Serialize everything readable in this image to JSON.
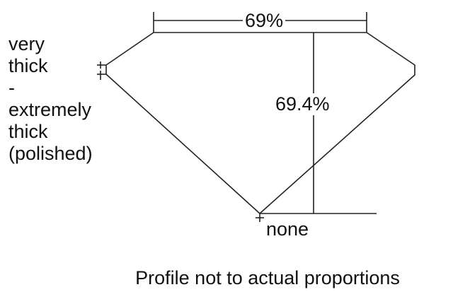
{
  "girdle_label": [
    "very",
    "thick",
    "-",
    "extremely",
    "thick",
    "(polished)"
  ],
  "table_percent": "69%",
  "depth_percent": "69.4%",
  "culet_label": "none",
  "caption": "Profile not to actual proportions",
  "line_color": "#222222"
}
